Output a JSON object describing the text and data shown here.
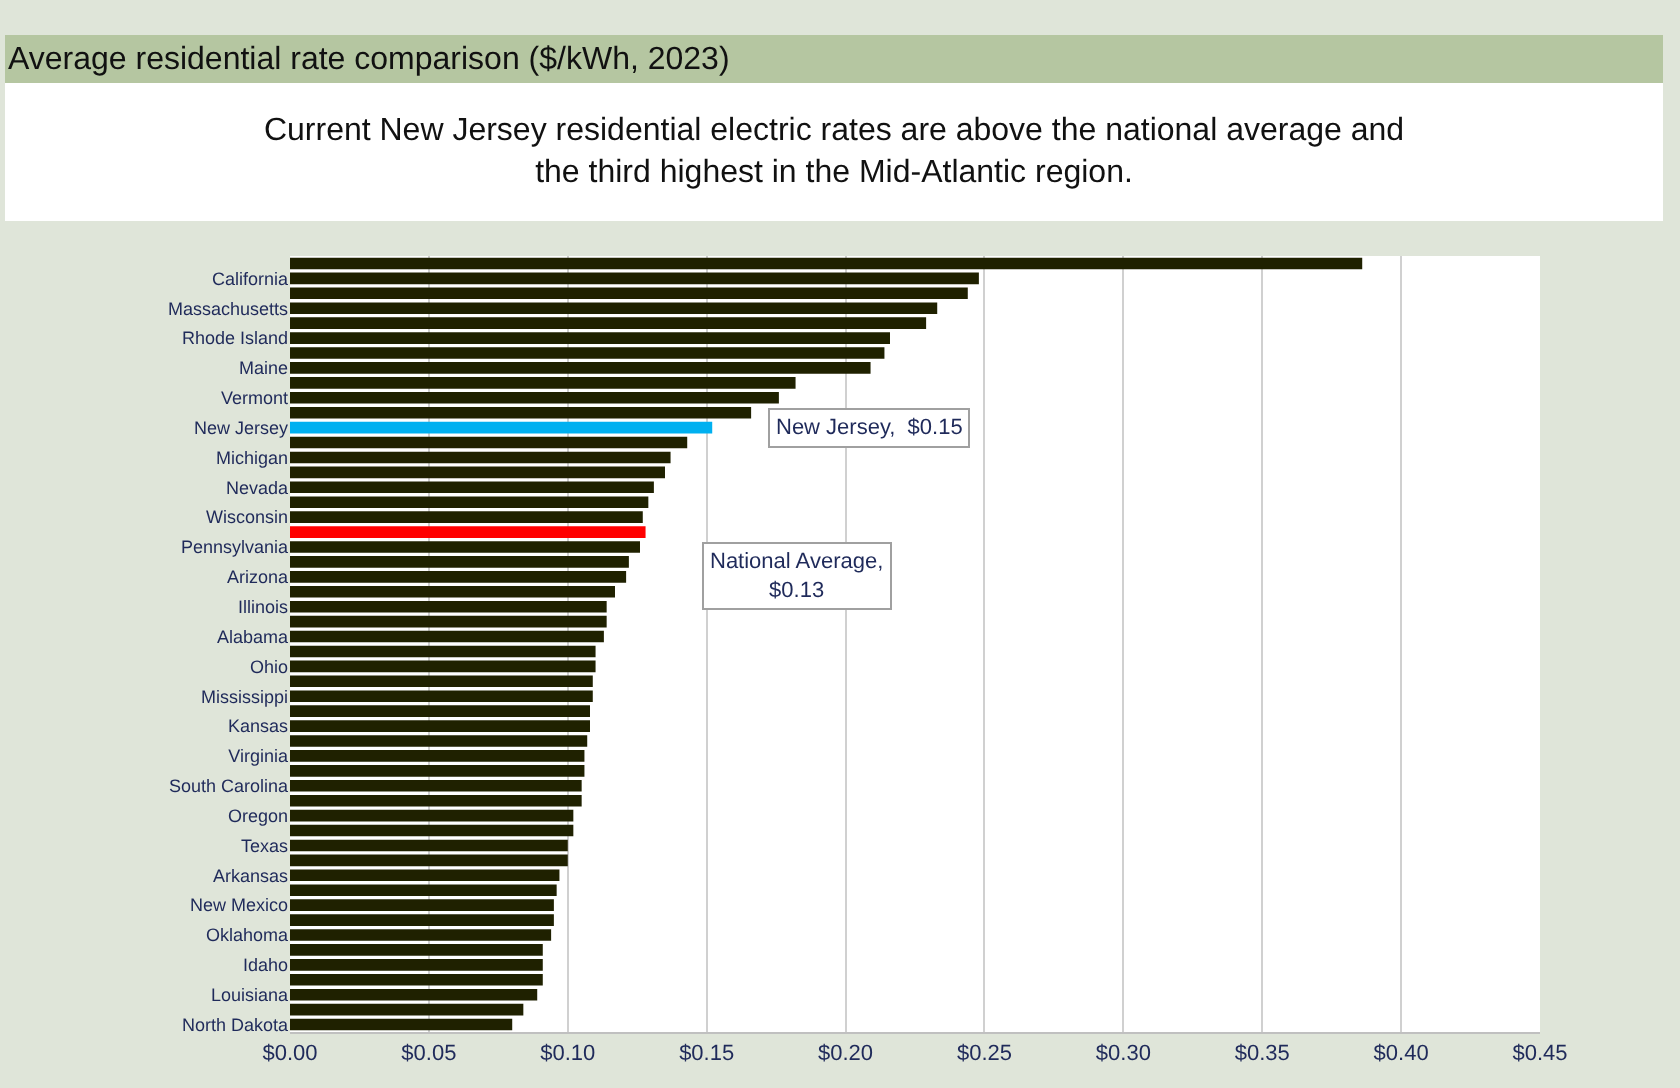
{
  "chart_data": {
    "type": "bar",
    "orientation": "horizontal",
    "title": "Average residential rate comparison ($/kWh, 2023)",
    "subtitle": "Current New Jersey residential electric rates are above the national average and the third highest in the Mid-Atlantic region.",
    "categories": [
      null,
      "California",
      null,
      "Massachusetts",
      null,
      "Rhode Island",
      null,
      "Maine",
      null,
      "Vermont",
      null,
      "New Jersey",
      null,
      "Michigan",
      null,
      "Nevada",
      null,
      "Wisconsin",
      null,
      "Pennsylvania",
      null,
      "Arizona",
      null,
      "Illinois",
      null,
      "Alabama",
      null,
      "Ohio",
      null,
      "Mississippi",
      null,
      "Kansas",
      null,
      "Virginia",
      null,
      "South Carolina",
      null,
      "Oregon",
      null,
      "Texas",
      null,
      "Arkansas",
      null,
      "New Mexico",
      null,
      "Oklahoma",
      null,
      "Idaho",
      null,
      "Louisiana",
      null,
      "North Dakota"
    ],
    "values": [
      0.386,
      0.248,
      0.244,
      0.233,
      0.229,
      0.216,
      0.214,
      0.209,
      0.182,
      0.176,
      0.166,
      0.152,
      0.143,
      0.137,
      0.135,
      0.131,
      0.129,
      0.127,
      0.128,
      0.126,
      0.122,
      0.121,
      0.117,
      0.114,
      0.114,
      0.113,
      0.11,
      0.11,
      0.109,
      0.109,
      0.108,
      0.108,
      0.107,
      0.106,
      0.106,
      0.105,
      0.105,
      0.102,
      0.102,
      0.1,
      0.1,
      0.097,
      0.096,
      0.095,
      0.095,
      0.094,
      0.091,
      0.091,
      0.091,
      0.089,
      0.084,
      0.08
    ],
    "color": "#1f2100",
    "colors": [
      "#1f2100",
      "#1f2100",
      "#1f2100",
      "#1f2100",
      "#1f2100",
      "#1f2100",
      "#1f2100",
      "#1f2100",
      "#1f2100",
      "#1f2100",
      "#1f2100",
      "#00b0f0",
      "#1f2100",
      "#1f2100",
      "#1f2100",
      "#1f2100",
      "#1f2100",
      "#1f2100",
      "#ff0000",
      "#1f2100",
      "#1f2100",
      "#1f2100",
      "#1f2100",
      "#1f2100",
      "#1f2100",
      "#1f2100",
      "#1f2100",
      "#1f2100",
      "#1f2100",
      "#1f2100",
      "#1f2100",
      "#1f2100",
      "#1f2100",
      "#1f2100",
      "#1f2100",
      "#1f2100",
      "#1f2100",
      "#1f2100",
      "#1f2100",
      "#1f2100",
      "#1f2100",
      "#1f2100",
      "#1f2100",
      "#1f2100",
      "#1f2100",
      "#1f2100",
      "#1f2100",
      "#1f2100",
      "#1f2100",
      "#1f2100",
      "#1f2100",
      "#1f2100"
    ],
    "xlim": [
      0,
      0.45
    ],
    "xticks": [
      {
        "value": 0,
        "label": "$0.00"
      },
      {
        "value": 0.05,
        "label": "$0.05"
      },
      {
        "value": 0.1,
        "label": "$0.10"
      },
      {
        "value": 0.15,
        "label": "$0.15"
      },
      {
        "value": 0.2,
        "label": "$0.20"
      },
      {
        "value": 0.25,
        "label": "$0.25"
      },
      {
        "value": 0.3,
        "label": "$0.30"
      },
      {
        "value": 0.35,
        "label": "$0.35"
      },
      {
        "value": 0.4,
        "label": "$0.40"
      },
      {
        "value": 0.45,
        "label": "$0.45"
      }
    ],
    "grid": "x",
    "annotations": [
      "New Jersey,  $0.15",
      "National Average,\n$0.13"
    ]
  }
}
